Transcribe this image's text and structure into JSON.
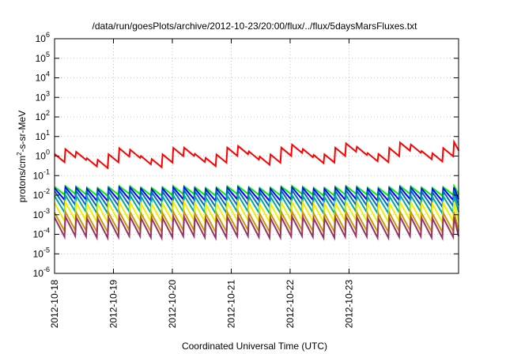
{
  "chart_data": {
    "type": "line",
    "title": "/data/run/goesPlots/archive/2012-10-23/20:00/flux/../flux/5daysMarsFluxes.txt",
    "xlabel": "Coordinated Universal Time (UTC)",
    "ylabel": {
      "base": "protons/cm",
      "sup": "2",
      "rest": "-s-sr-MeV"
    },
    "yscale": "log",
    "ylim_exp": [
      -6,
      6
    ],
    "yticks": [
      {
        "base": "10",
        "exp": "6"
      },
      {
        "base": "10",
        "exp": "5"
      },
      {
        "base": "10",
        "exp": "4"
      },
      {
        "base": "10",
        "exp": "3"
      },
      {
        "base": "10",
        "exp": "2"
      },
      {
        "base": "10",
        "exp": "1"
      },
      {
        "base": "10",
        "exp": "0"
      },
      {
        "base": "10",
        "exp": "-1"
      },
      {
        "base": "10",
        "exp": "-2"
      },
      {
        "base": "10",
        "exp": "-3"
      },
      {
        "base": "10",
        "exp": "-4"
      },
      {
        "base": "10",
        "exp": "-5"
      },
      {
        "base": "10",
        "exp": "-6"
      }
    ],
    "xlim_days": [
      0,
      6.86
    ],
    "xticks": [
      "2012-10-18",
      "2012-10-19",
      "2012-10-20",
      "2012-10-21",
      "2012-10-22",
      "2012-10-23"
    ],
    "grid": true,
    "series": [
      {
        "color": "#ff0000",
        "period_hours": 4.4,
        "ramp": 0.35,
        "drift": 0.35,
        "base_log": -0.3,
        "wave_amp": 0.3,
        "wave_period_days": 0.95,
        "wave_phase": 0.2,
        "trend": 0.06
      },
      {
        "color": "#00ee00",
        "period_hours": 4.4,
        "ramp": 0.35,
        "drift": 0.25,
        "base_log": -1.93,
        "wave_amp": 0.05,
        "wave_period_days": 0.95,
        "wave_phase": 0.2,
        "trend": 0.0
      },
      {
        "color": "#0000ff",
        "period_hours": 4.4,
        "ramp": 0.55,
        "drift": 0.25,
        "base_log": -2.2,
        "wave_amp": 0.05,
        "wave_period_days": 0.95,
        "wave_phase": 0.2,
        "trend": 0.0
      },
      {
        "color": "#0066cc",
        "period_hours": 4.4,
        "ramp": 0.7,
        "drift": 0.25,
        "base_log": -2.5,
        "wave_amp": 0.05,
        "wave_period_days": 0.95,
        "wave_phase": 0.2,
        "trend": 0.0
      },
      {
        "color": "#00aa99",
        "period_hours": 4.4,
        "ramp": 0.8,
        "drift": 0.2,
        "base_log": -2.85,
        "wave_amp": 0.05,
        "wave_period_days": 0.95,
        "wave_phase": 0.2,
        "trend": 0.0
      },
      {
        "color": "#eeee00",
        "period_hours": 4.4,
        "ramp": 0.9,
        "drift": 0.2,
        "base_log": -3.3,
        "wave_amp": 0.05,
        "wave_period_days": 0.95,
        "wave_phase": 0.2,
        "trend": 0.0
      },
      {
        "color": "#cc9900",
        "period_hours": 4.4,
        "ramp": 0.9,
        "drift": 0.2,
        "base_log": -3.8,
        "wave_amp": 0.05,
        "wave_period_days": 0.95,
        "wave_phase": 0.2,
        "trend": 0.0
      },
      {
        "color": "#993366",
        "period_hours": 4.4,
        "ramp": 0.95,
        "drift": 0.2,
        "base_log": -4.1,
        "wave_amp": 0.05,
        "wave_period_days": 0.95,
        "wave_phase": 0.2,
        "trend": 0.0
      }
    ]
  }
}
